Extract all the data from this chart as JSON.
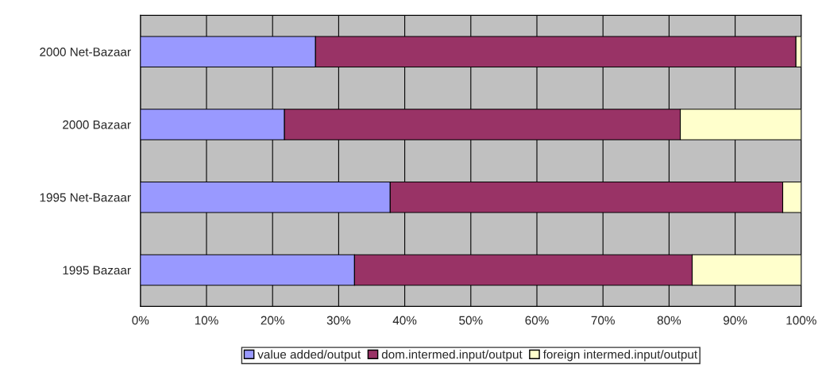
{
  "chart_data": {
    "type": "bar",
    "orientation": "horizontal",
    "stacked": true,
    "categories": [
      "2000 Net-Bazaar",
      "2000 Bazaar",
      "1995 Net-Bazaar",
      "1995 Bazaar"
    ],
    "series": [
      {
        "name": "value added/output",
        "color": "#9999ff",
        "values": [
          26.5,
          21.8,
          37.8,
          32.4
        ]
      },
      {
        "name": "dom.intermed.input/output",
        "color": "#993366",
        "values": [
          72.7,
          59.9,
          59.4,
          51.1
        ]
      },
      {
        "name": "foreign intermed.input/output",
        "color": "#ffffcc",
        "values": [
          0.8,
          18.3,
          2.8,
          16.5
        ]
      }
    ],
    "xlim": [
      0,
      100
    ],
    "xticks": [
      {
        "value": 0,
        "label": "0%"
      },
      {
        "value": 10,
        "label": "10%"
      },
      {
        "value": 20,
        "label": "20%"
      },
      {
        "value": 30,
        "label": "30%"
      },
      {
        "value": 40,
        "label": "40%"
      },
      {
        "value": 50,
        "label": "50%"
      },
      {
        "value": 60,
        "label": "60%"
      },
      {
        "value": 70,
        "label": "70%"
      },
      {
        "value": 80,
        "label": "80%"
      },
      {
        "value": 90,
        "label": "90%"
      },
      {
        "value": 100,
        "label": "100%"
      }
    ],
    "grid": "x",
    "legend": "bottom"
  }
}
